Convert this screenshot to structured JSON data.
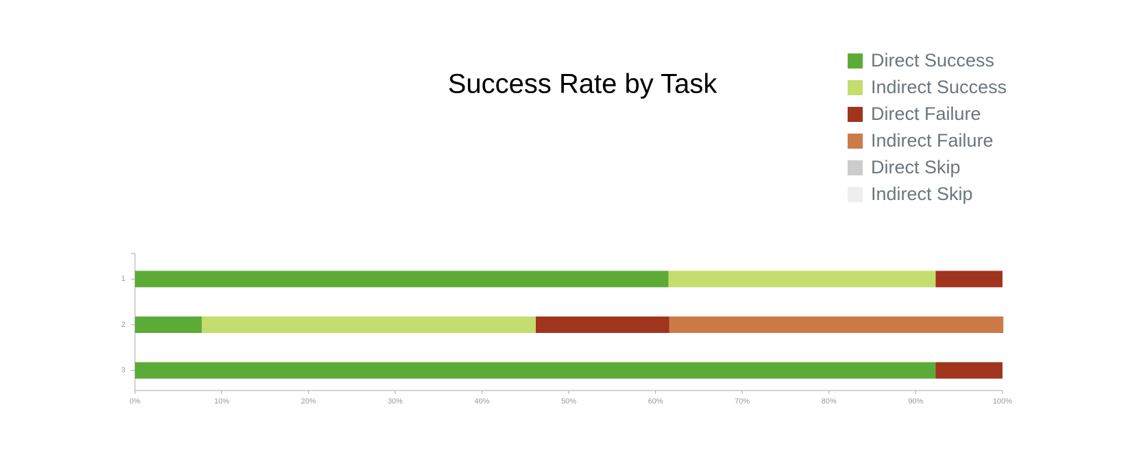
{
  "chart_data": {
    "type": "stacked-bar-horizontal",
    "title": "Success Rate by Task",
    "categories": [
      "1",
      "2",
      "3"
    ],
    "series": [
      {
        "name": "Direct Success",
        "color": "#5dab37",
        "values": [
          61.5,
          7.7,
          92.3
        ]
      },
      {
        "name": "Indirect Success",
        "color": "#c3dd6f",
        "values": [
          30.8,
          38.5,
          0
        ]
      },
      {
        "name": "Direct Failure",
        "color": "#a1341c",
        "values": [
          7.7,
          15.4,
          7.7
        ]
      },
      {
        "name": "Indirect Failure",
        "color": "#cb7a48",
        "values": [
          0,
          38.5,
          0
        ]
      },
      {
        "name": "Direct Skip",
        "color": "#cccccc",
        "values": [
          0,
          0,
          0
        ]
      },
      {
        "name": "Indirect Skip",
        "color": "#eeeeee",
        "values": [
          0,
          0,
          0
        ]
      }
    ],
    "xlim": [
      0,
      100
    ],
    "xticks": [
      {
        "value": 0,
        "label": "0%"
      },
      {
        "value": 10,
        "label": "10%"
      },
      {
        "value": 20,
        "label": "20%"
      },
      {
        "value": 30,
        "label": "30%"
      },
      {
        "value": 40,
        "label": "40%"
      },
      {
        "value": 50,
        "label": "50%"
      },
      {
        "value": 60,
        "label": "60%"
      },
      {
        "value": 70,
        "label": "70%"
      },
      {
        "value": 80,
        "label": "80%"
      },
      {
        "value": 90,
        "label": "90%"
      },
      {
        "value": 100,
        "label": "100%"
      }
    ],
    "legend": "top-right"
  }
}
